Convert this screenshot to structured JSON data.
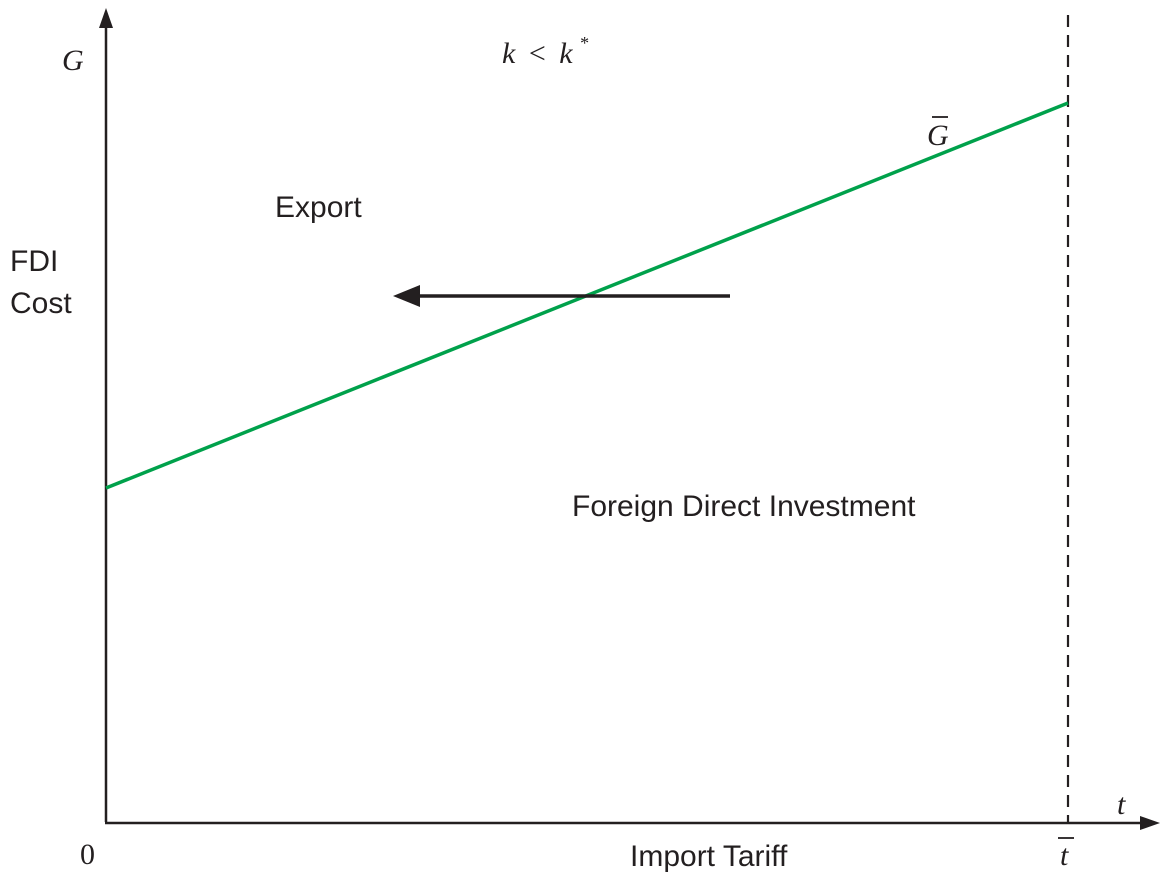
{
  "diagram": {
    "y_axis": {
      "symbol": "G",
      "label_line1": "FDI",
      "label_line2": "Cost"
    },
    "x_axis": {
      "symbol": "t",
      "label": "Import Tariff",
      "origin": "0",
      "threshold_symbol": "t"
    },
    "condition": {
      "k": "k",
      "lt": "<",
      "kstar": "k",
      "star": "*"
    },
    "line_label": "G",
    "regions": {
      "above": "Export",
      "below": "Foreign Direct Investment"
    },
    "colors": {
      "line": "#00a14b",
      "axes": "#231f20"
    }
  }
}
